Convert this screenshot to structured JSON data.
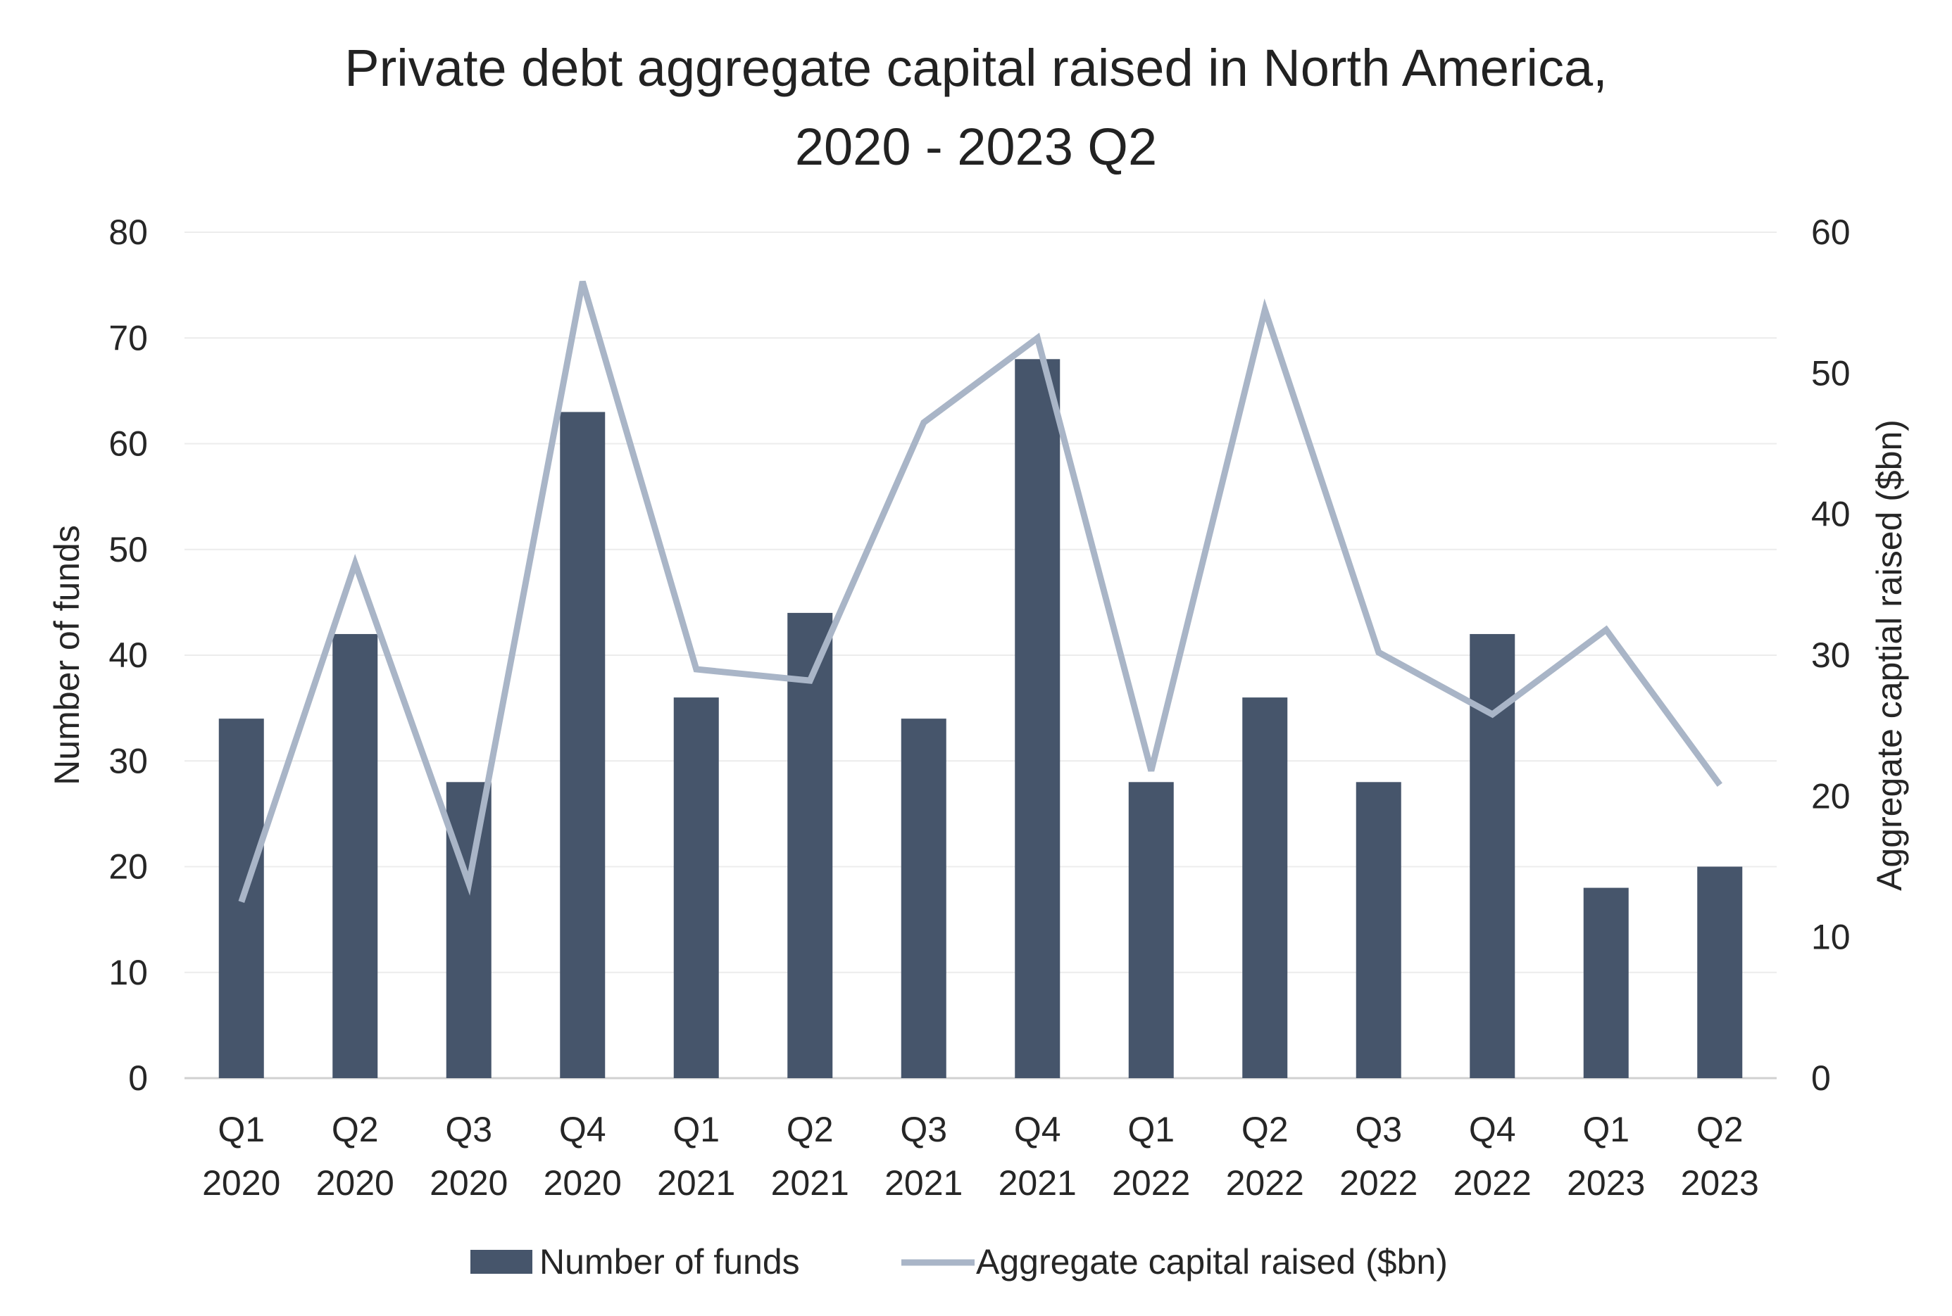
{
  "chart_data": {
    "type": "bar",
    "title_lines": [
      "Private debt aggregate capital raised in North America,",
      "2020 - 2023 Q2"
    ],
    "categories": [
      [
        "Q1",
        "2020"
      ],
      [
        "Q2",
        "2020"
      ],
      [
        "Q3",
        "2020"
      ],
      [
        "Q4",
        "2020"
      ],
      [
        "Q1",
        "2021"
      ],
      [
        "Q2",
        "2021"
      ],
      [
        "Q3",
        "2021"
      ],
      [
        "Q4",
        "2021"
      ],
      [
        "Q1",
        "2022"
      ],
      [
        "Q2",
        "2022"
      ],
      [
        "Q3",
        "2022"
      ],
      [
        "Q4",
        "2022"
      ],
      [
        "Q1",
        "2023"
      ],
      [
        "Q2",
        "2023"
      ]
    ],
    "series": [
      {
        "name": "Number of funds",
        "type": "bar",
        "axis": "left",
        "color": "#46556b",
        "values": [
          34,
          42,
          28,
          63,
          36,
          44,
          34,
          68,
          28,
          36,
          28,
          42,
          18,
          20
        ]
      },
      {
        "name": "Aggregate capital raised ($bn)",
        "type": "line",
        "axis": "right",
        "color": "#a9b5c7",
        "values": [
          12.5,
          36.5,
          13.8,
          56.5,
          29,
          28.2,
          46.5,
          52.5,
          21.8,
          54.5,
          30.2,
          25.8,
          31.8,
          20.8
        ]
      }
    ],
    "ylabel": "Number of funds",
    "ylim": [
      0,
      80
    ],
    "yticks": [
      "0",
      "10",
      "20",
      "30",
      "40",
      "50",
      "60",
      "70",
      "80"
    ],
    "y2label": "Aggregate captial raised ($bn)",
    "y2lim": [
      0,
      60
    ],
    "y2ticks": [
      "0",
      "10",
      "20",
      "30",
      "40",
      "50",
      "60"
    ],
    "grid": true,
    "legend_position": "bottom"
  }
}
